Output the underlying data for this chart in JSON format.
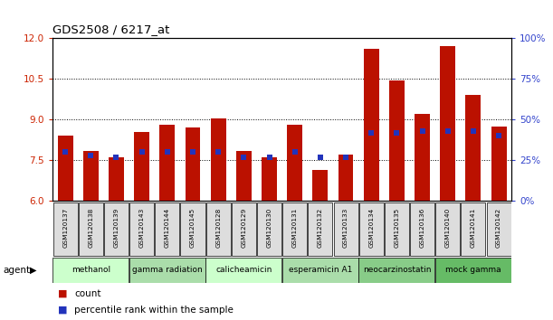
{
  "title": "GDS2508 / 6217_at",
  "samples": [
    "GSM120137",
    "GSM120138",
    "GSM120139",
    "GSM120143",
    "GSM120144",
    "GSM120145",
    "GSM120128",
    "GSM120129",
    "GSM120130",
    "GSM120131",
    "GSM120132",
    "GSM120133",
    "GSM120134",
    "GSM120135",
    "GSM120136",
    "GSM120140",
    "GSM120141",
    "GSM120142"
  ],
  "red_values": [
    8.4,
    7.85,
    7.6,
    8.55,
    8.8,
    8.7,
    9.05,
    7.85,
    7.6,
    8.8,
    7.15,
    7.7,
    11.6,
    10.45,
    9.2,
    11.7,
    9.9,
    8.75
  ],
  "blue_pct": [
    30,
    28,
    27,
    30,
    30,
    30,
    30,
    27,
    27,
    30,
    27,
    27,
    42,
    42,
    43,
    43,
    43,
    40
  ],
  "ylim_left": [
    6,
    12
  ],
  "ylim_right": [
    0,
    100
  ],
  "yticks_left": [
    6,
    7.5,
    9,
    10.5,
    12
  ],
  "yticks_right": [
    0,
    25,
    50,
    75,
    100
  ],
  "ytick_labels_right": [
    "0%",
    "25%",
    "50%",
    "75%",
    "100%"
  ],
  "agents": [
    {
      "label": "methanol",
      "start": 0,
      "end": 3,
      "color": "#ccffcc"
    },
    {
      "label": "gamma radiation",
      "start": 3,
      "end": 6,
      "color": "#aaddaa"
    },
    {
      "label": "calicheamicin",
      "start": 6,
      "end": 9,
      "color": "#ccffcc"
    },
    {
      "label": "esperamicin A1",
      "start": 9,
      "end": 12,
      "color": "#aaddaa"
    },
    {
      "label": "neocarzinostatin",
      "start": 12,
      "end": 15,
      "color": "#88cc88"
    },
    {
      "label": "mock gamma",
      "start": 15,
      "end": 18,
      "color": "#66bb66"
    }
  ],
  "bar_color": "#bb1100",
  "blue_color": "#2233bb",
  "tick_color_left": "#cc2200",
  "tick_color_right": "#3344cc",
  "agent_label": "agent",
  "legend_count": "count",
  "legend_percentile": "percentile rank within the sample",
  "sample_box_color": "#dddddd",
  "gridline_ticks": [
    7.5,
    9.0,
    10.5
  ]
}
